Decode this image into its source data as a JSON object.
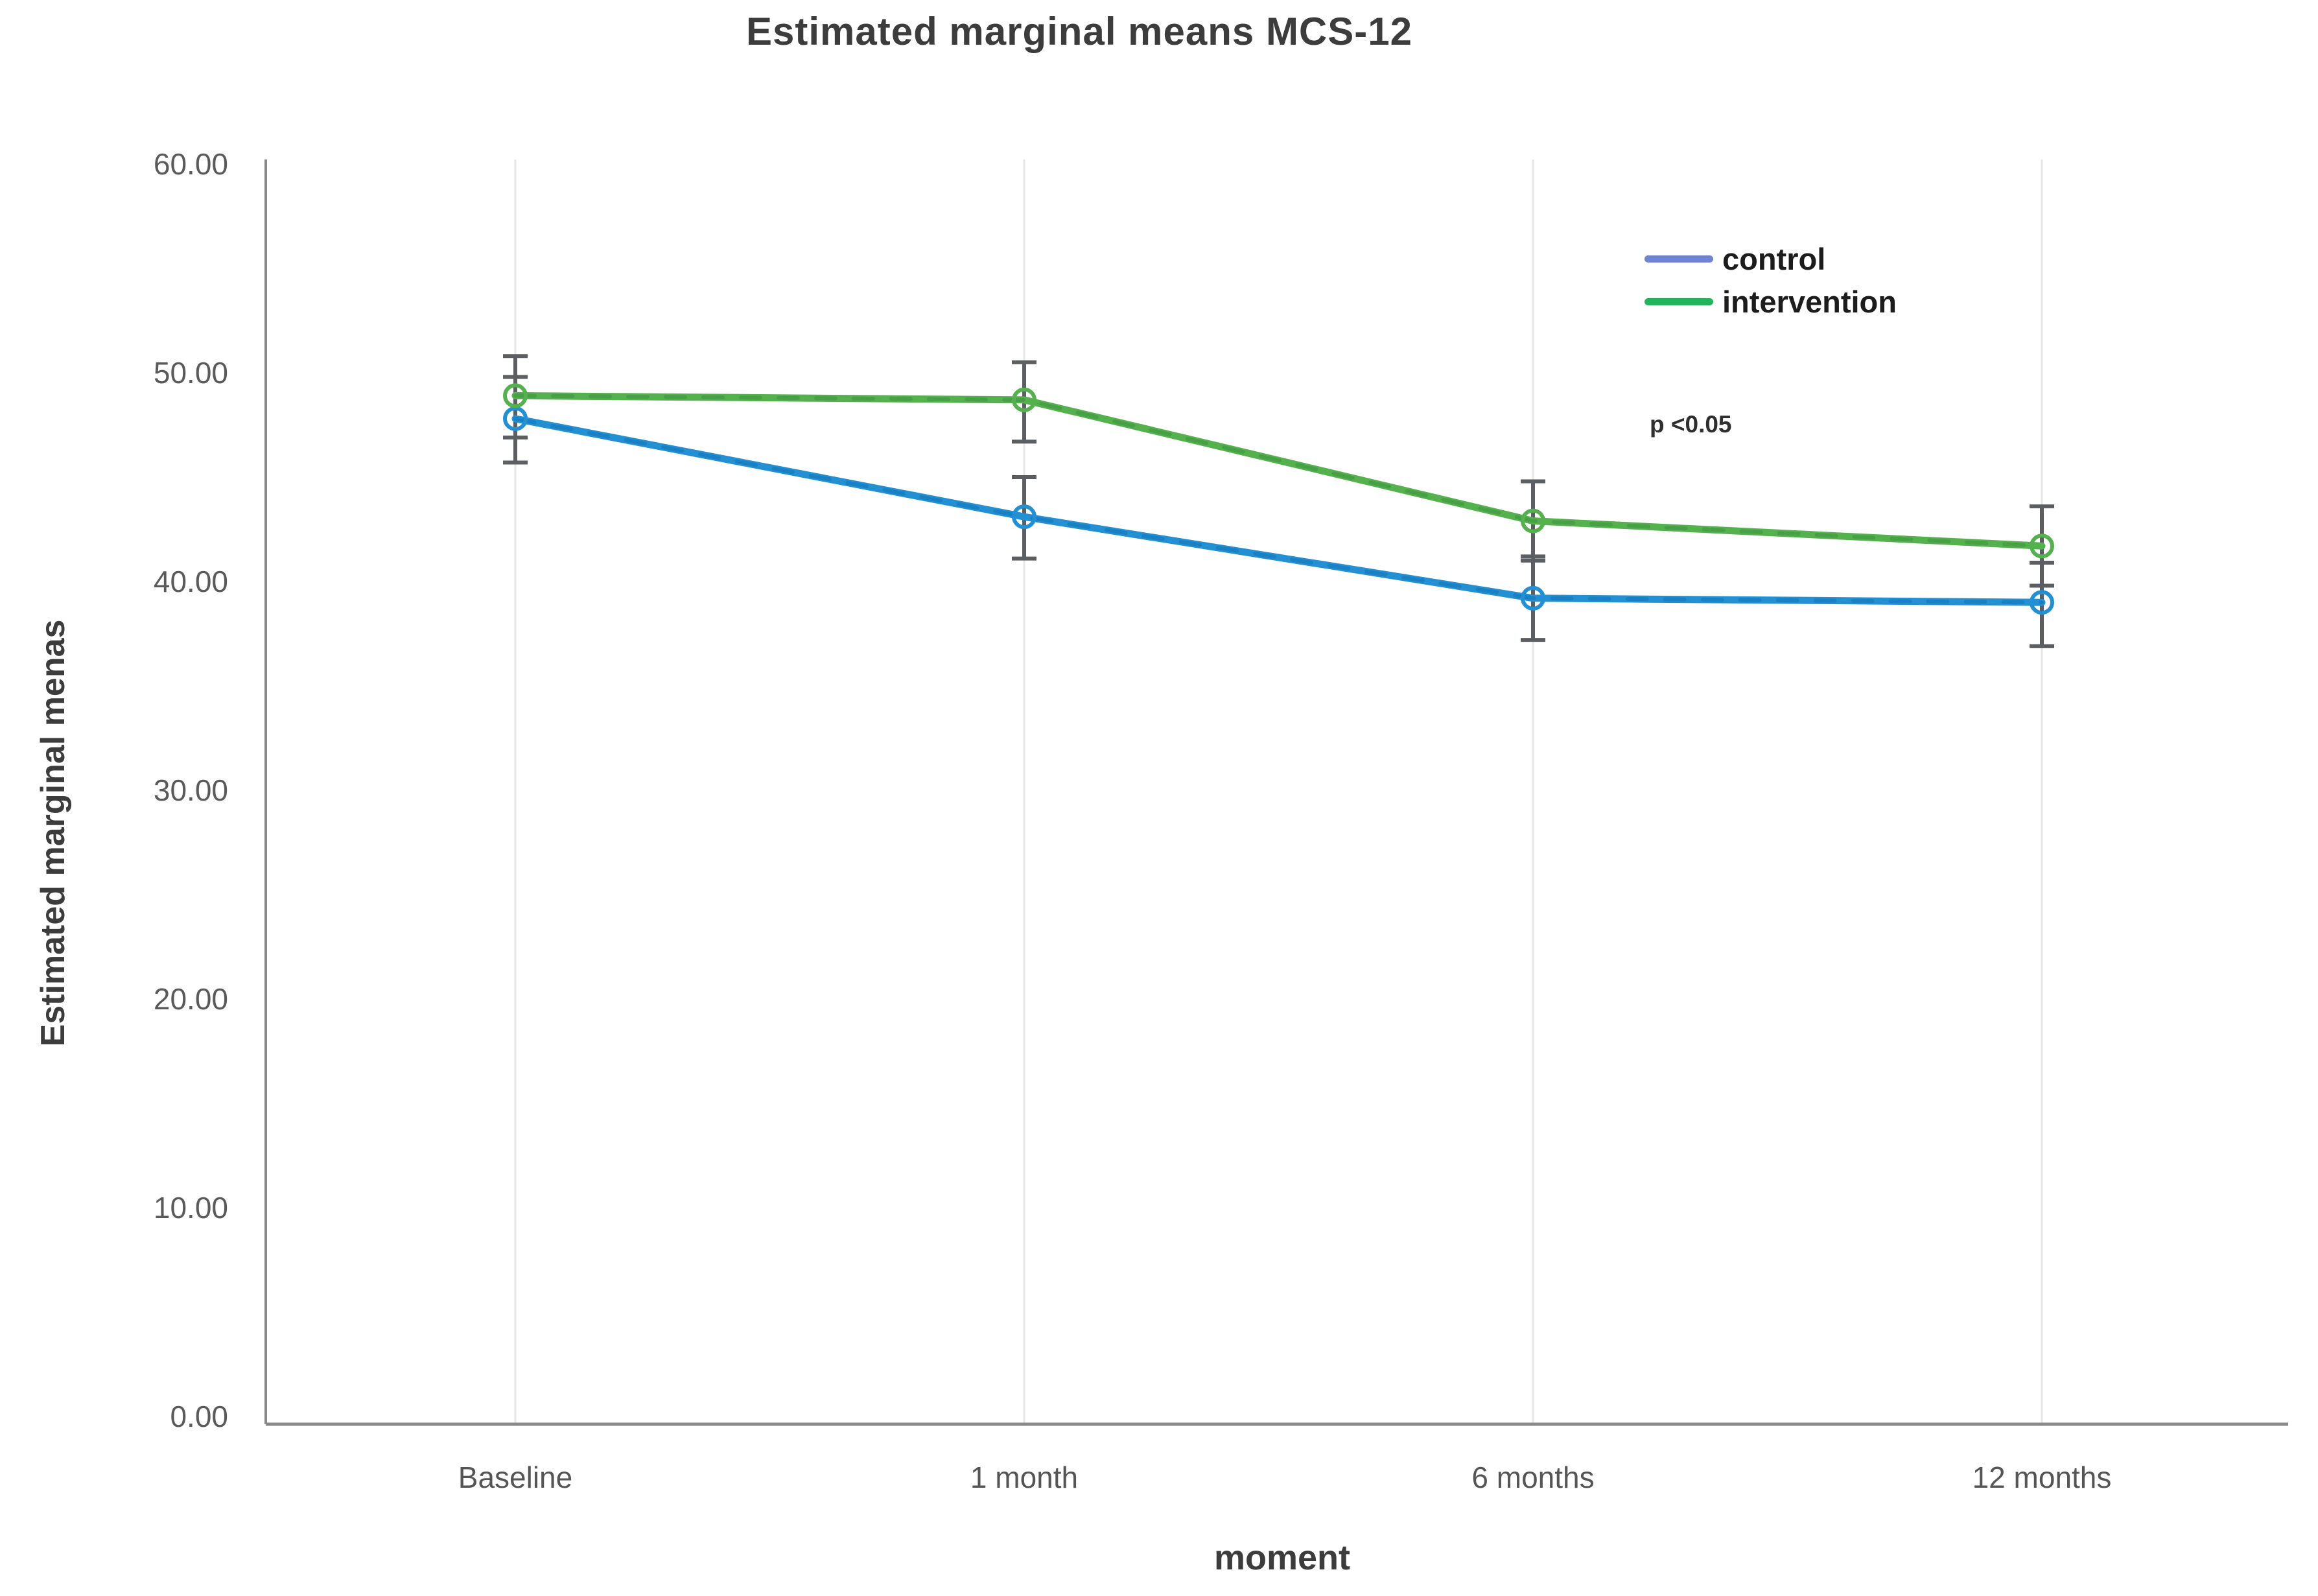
{
  "title": "Estimated marginal means MCS-12",
  "axes": {
    "y_title": "Estimated marginal menas",
    "x_title": "moment",
    "y_ticks": [
      "60.00",
      "50.00",
      "40.00",
      "30.00",
      "20.00",
      "10.00",
      "0.00"
    ],
    "x_ticks": [
      "Baseline",
      "1 month",
      "6 months",
      "12 months"
    ]
  },
  "legend": {
    "items": [
      {
        "label": "control",
        "swatch_color": "#6e84cc"
      },
      {
        "label": "intervention",
        "swatch_color": "#22b45a"
      }
    ]
  },
  "annotation": {
    "text": "p <0.05"
  },
  "chart_data": {
    "type": "line",
    "title": "Estimated marginal means MCS-12",
    "xlabel": "moment",
    "ylabel": "Estimated marginal menas",
    "categories": [
      "Baseline",
      "1 month",
      "6 months",
      "12 months"
    ],
    "ylim": [
      0,
      60
    ],
    "y_tick_values": [
      60,
      50,
      40,
      30,
      20,
      10,
      0
    ],
    "y_tick_step": 10,
    "grid": "vertical-only",
    "legend_position": "top-right-inside",
    "annotation": "p <0.05",
    "error_bars": true,
    "error_bar_color": "#5b5f63",
    "series": [
      {
        "name": "control",
        "color": "#2490d4",
        "dash_color": "#1173b4",
        "legend_color": "#6e84cc",
        "marker": "open-circle",
        "values": [
          47.8,
          43.1,
          39.2,
          39.0
        ],
        "ci_low": [
          45.7,
          41.1,
          37.2,
          36.9
        ],
        "ci_high": [
          49.8,
          45.0,
          41.2,
          40.9
        ]
      },
      {
        "name": "intervention",
        "color": "#55b04e",
        "dash_color": "#3d9440",
        "legend_color": "#22b45a",
        "marker": "open-circle",
        "values": [
          48.9,
          48.7,
          42.9,
          41.7
        ],
        "ci_low": [
          46.9,
          46.7,
          41.0,
          39.8
        ],
        "ci_high": [
          50.8,
          50.5,
          44.8,
          43.6
        ]
      }
    ]
  }
}
